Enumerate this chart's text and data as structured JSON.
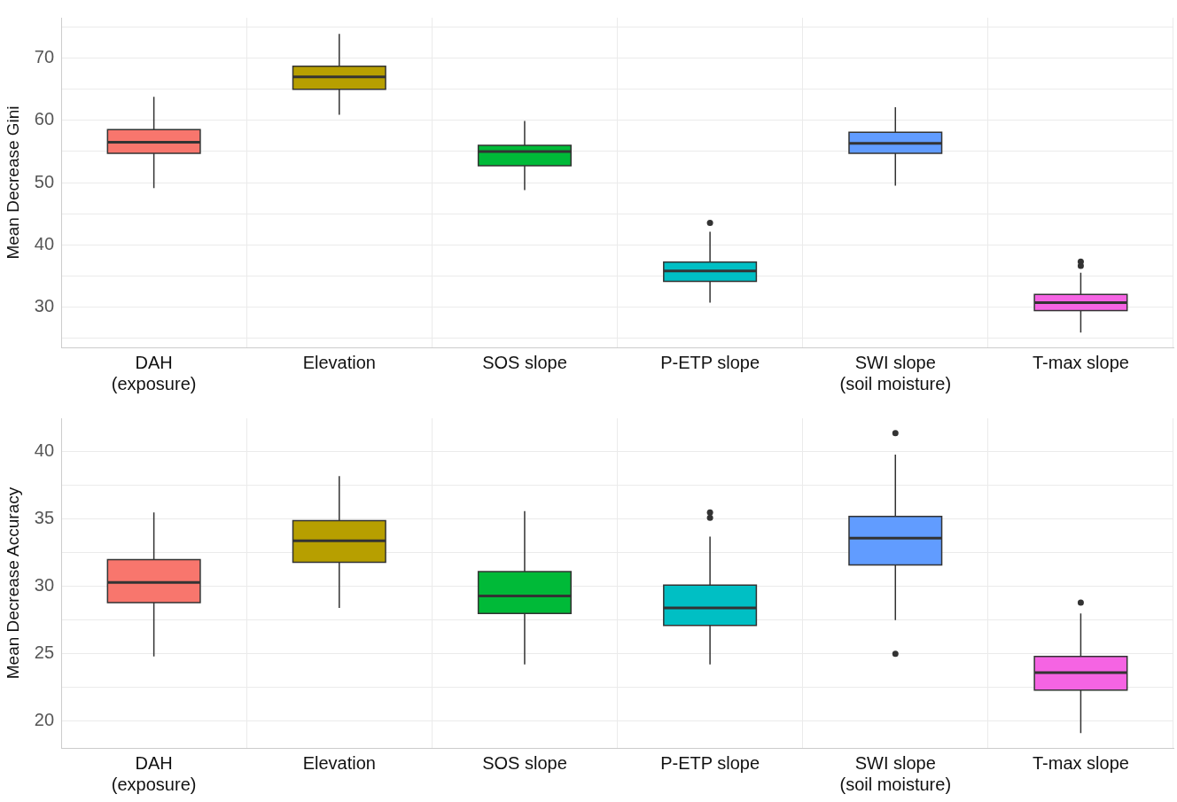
{
  "chart_data": [
    {
      "type": "box",
      "ylabel": "Mean Decrease Gini",
      "categories": [
        "DAH\n(exposure)",
        "Elevation",
        "SOS slope",
        "P-ETP slope",
        "SWI slope\n(soil moisture)",
        "T-max slope"
      ],
      "colors": [
        "#f8766d",
        "#b79f00",
        "#00ba38",
        "#00bfc4",
        "#619cff",
        "#f564e3"
      ],
      "boxes": [
        {
          "low": 49.1,
          "q1": 54.7,
          "median": 56.5,
          "q3": 58.5,
          "high": 63.8
        },
        {
          "low": 60.9,
          "q1": 65.0,
          "median": 67.0,
          "q3": 68.7,
          "high": 73.9
        },
        {
          "low": 48.8,
          "q1": 52.7,
          "median": 55.0,
          "q3": 56.0,
          "high": 59.9
        },
        {
          "low": 30.7,
          "q1": 34.1,
          "median": 35.8,
          "q3": 37.2,
          "high": 42.1,
          "outliers": [
            43.5
          ]
        },
        {
          "low": 49.5,
          "q1": 54.7,
          "median": 56.3,
          "q3": 58.1,
          "high": 62.1
        },
        {
          "low": 25.9,
          "q1": 29.4,
          "median": 30.7,
          "q3": 32.0,
          "high": 35.5,
          "outliers": [
            36.6,
            37.3
          ]
        }
      ],
      "ylim": [
        23.5,
        76.5
      ],
      "yticks": [
        {
          "value": 25,
          "label": null
        },
        30,
        {
          "value": 35,
          "label": null
        },
        40,
        {
          "value": 45,
          "label": null
        },
        50,
        {
          "value": 55,
          "label": null
        },
        60,
        {
          "value": 65,
          "label": null
        },
        70,
        {
          "value": 75,
          "label": null
        }
      ],
      "grid": true
    },
    {
      "type": "box",
      "ylabel": "Mean Decrease Accuracy",
      "categories": [
        "DAH\n(exposure)",
        "Elevation",
        "SOS slope",
        "P-ETP slope",
        "SWI slope\n(soil moisture)",
        "T-max slope"
      ],
      "colors": [
        "#f8766d",
        "#b79f00",
        "#00ba38",
        "#00bfc4",
        "#619cff",
        "#f564e3"
      ],
      "boxes": [
        {
          "low": 24.8,
          "q1": 28.8,
          "median": 30.3,
          "q3": 32.0,
          "high": 35.5
        },
        {
          "low": 28.4,
          "q1": 31.8,
          "median": 33.4,
          "q3": 34.9,
          "high": 38.2
        },
        {
          "low": 24.2,
          "q1": 28.0,
          "median": 29.3,
          "q3": 31.1,
          "high": 35.6
        },
        {
          "low": 24.2,
          "q1": 27.1,
          "median": 28.4,
          "q3": 30.1,
          "high": 33.7,
          "outliers": [
            35.1,
            35.5
          ]
        },
        {
          "low": 27.5,
          "q1": 31.6,
          "median": 33.6,
          "q3": 35.2,
          "high": 39.8,
          "outliers": [
            25.0,
            41.4
          ]
        },
        {
          "low": 19.1,
          "q1": 22.3,
          "median": 23.6,
          "q3": 24.8,
          "high": 28.0,
          "outliers": [
            28.8
          ]
        }
      ],
      "ylim": [
        18,
        42.5
      ],
      "yticks": [
        20,
        {
          "value": 22.5,
          "label": null
        },
        25,
        {
          "value": 27.5,
          "label": null
        },
        30,
        {
          "value": 32.5,
          "label": null
        },
        35,
        {
          "value": 37.5,
          "label": null
        },
        40
      ],
      "grid": true
    }
  ]
}
